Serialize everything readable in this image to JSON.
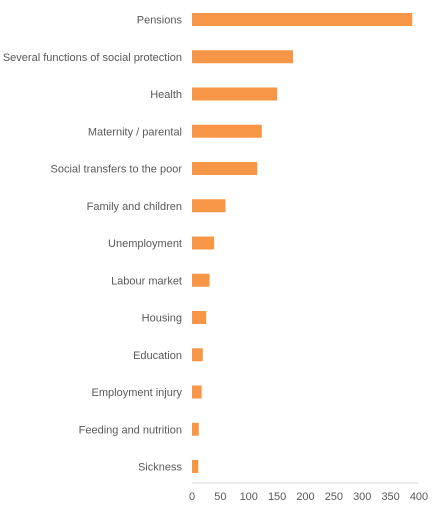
{
  "chart_data": {
    "type": "bar",
    "orientation": "horizontal",
    "title": "",
    "xlabel": "",
    "ylabel": "",
    "categories": [
      "Pensions",
      "Several functions of social protection",
      "Health",
      "Maternity / parental",
      "Social transfers to the poor",
      "Family and children",
      "Unemployment",
      "Labour market",
      "Housing",
      "Education",
      "Employment injury",
      "Feeding and nutrition",
      "Sickness"
    ],
    "values": [
      388,
      178,
      150,
      123,
      115,
      59,
      39,
      31,
      25,
      19,
      17,
      12,
      11
    ],
    "xlim": [
      0,
      400
    ],
    "xticks": [
      0,
      50,
      100,
      150,
      200,
      250,
      300,
      350,
      400
    ],
    "bar_color": "#F79646",
    "grid": false,
    "legend": "none"
  }
}
